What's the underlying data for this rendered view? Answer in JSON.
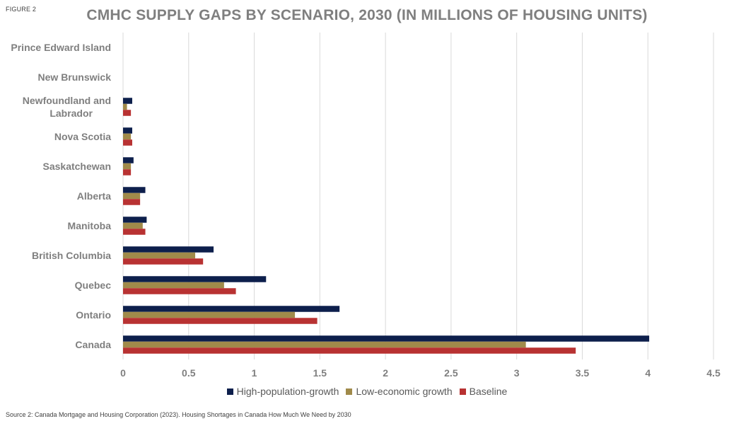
{
  "figure_label": "FIGURE 2",
  "source_text": "Source 2: Canada Mortgage and Housing Corporation (2023). Housing Shortages in Canada How Much We Need by 2030",
  "colors": {
    "high_population_growth": "#0d1f4c",
    "low_economic_growth": "#a08a4a",
    "baseline": "#b83232",
    "gridline": "#d9d9d9",
    "text": "#7f7f7f"
  },
  "chart_data": {
    "type": "bar",
    "orientation": "horizontal",
    "title": "CMHC SUPPLY GAPS BY SCENARIO, 2030 (IN MILLIONS OF HOUSING UNITS)",
    "xlabel": "",
    "ylabel": "",
    "xlim": [
      0,
      4.5
    ],
    "xticks": [
      "0",
      "0.5",
      "1",
      "1.5",
      "2",
      "2.5",
      "3",
      "3.5",
      "4",
      "4.5"
    ],
    "grid": true,
    "legend_position": "bottom",
    "categories": [
      "Prince Edward Island",
      "New Brunswick",
      "Newfoundland and Labrador",
      "Nova Scotia",
      "Saskatchewan",
      "Alberta",
      "Manitoba",
      "British Columbia",
      "Quebec",
      "Ontario",
      "Canada"
    ],
    "series": [
      {
        "name": "High-population-growth",
        "color": "#0d1f4c",
        "values": [
          0,
          0,
          0.07,
          0.07,
          0.08,
          0.17,
          0.18,
          0.69,
          1.09,
          1.65,
          4.01
        ]
      },
      {
        "name": "Low-economic growth",
        "color": "#a08a4a",
        "values": [
          0,
          0,
          0.03,
          0.06,
          0.06,
          0.13,
          0.15,
          0.55,
          0.77,
          1.31,
          3.07
        ]
      },
      {
        "name": "Baseline",
        "color": "#b83232",
        "values": [
          0,
          0,
          0.06,
          0.07,
          0.06,
          0.13,
          0.17,
          0.61,
          0.86,
          1.48,
          3.45
        ]
      }
    ]
  }
}
